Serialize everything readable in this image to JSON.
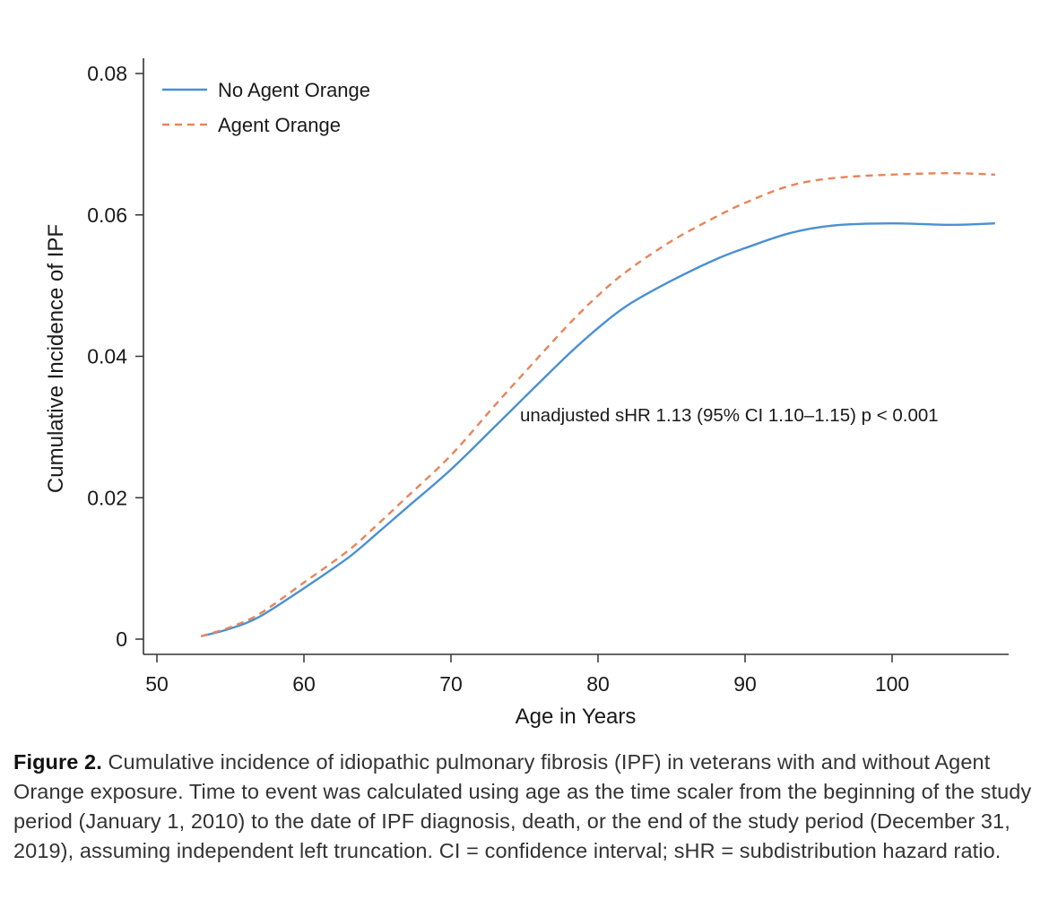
{
  "chart_data": {
    "type": "line",
    "xlabel": "Age in Years",
    "ylabel": "Cumulative Incidence of IPF",
    "xlim": [
      50,
      108
    ],
    "ylim": [
      0,
      0.08
    ],
    "x_ticks": [
      50,
      60,
      70,
      80,
      90,
      100
    ],
    "x_tick_labels": [
      "50",
      "60",
      "70",
      "80",
      "90",
      "100"
    ],
    "y_ticks": [
      0,
      0.02,
      0.04,
      0.06,
      0.08
    ],
    "y_tick_labels": [
      "0",
      "0.02",
      "0.04",
      "0.06",
      "0.08"
    ],
    "grid": false,
    "legend_position": "top-left",
    "annotation": "unadjusted sHR 1.13 (95% CI 1.10–1.15) p < 0.001",
    "series": [
      {
        "name": "No Agent Orange",
        "color": "#4a90d2",
        "style": "solid",
        "x": [
          53,
          55,
          57,
          60,
          63,
          65,
          67,
          70,
          73,
          75,
          78,
          80,
          82,
          85,
          88,
          90,
          93,
          96,
          100,
          104,
          107
        ],
        "y": [
          0.0004,
          0.0015,
          0.0032,
          0.0072,
          0.0115,
          0.015,
          0.0186,
          0.024,
          0.0301,
          0.0342,
          0.0403,
          0.044,
          0.0472,
          0.0507,
          0.0537,
          0.0553,
          0.0574,
          0.0585,
          0.0588,
          0.0586,
          0.0588
        ]
      },
      {
        "name": "Agent Orange",
        "color": "#e8845a",
        "style": "dashed",
        "x": [
          53,
          55,
          57,
          60,
          63,
          65,
          67,
          70,
          73,
          75,
          78,
          80,
          82,
          85,
          88,
          90,
          93,
          96,
          100,
          104,
          107
        ],
        "y": [
          0.0004,
          0.0017,
          0.0036,
          0.008,
          0.0125,
          0.0162,
          0.0201,
          0.026,
          0.0331,
          0.0377,
          0.0445,
          0.0486,
          0.0521,
          0.0563,
          0.0597,
          0.0617,
          0.0641,
          0.0652,
          0.0657,
          0.0659,
          0.0657
        ]
      }
    ]
  },
  "caption": {
    "label": "Figure 2.",
    "text": "Cumulative incidence of idiopathic pulmonary fibrosis (IPF) in veterans with and without Agent Orange exposure. Time to event was calculated using age as the time scaler from the beginning of the study period (January 1, 2010) to the date of IPF diagnosis, death, or the end of the study period (December 31, 2019), assuming independent left truncation. CI = confidence interval; sHR = subdistribution hazard ratio."
  }
}
